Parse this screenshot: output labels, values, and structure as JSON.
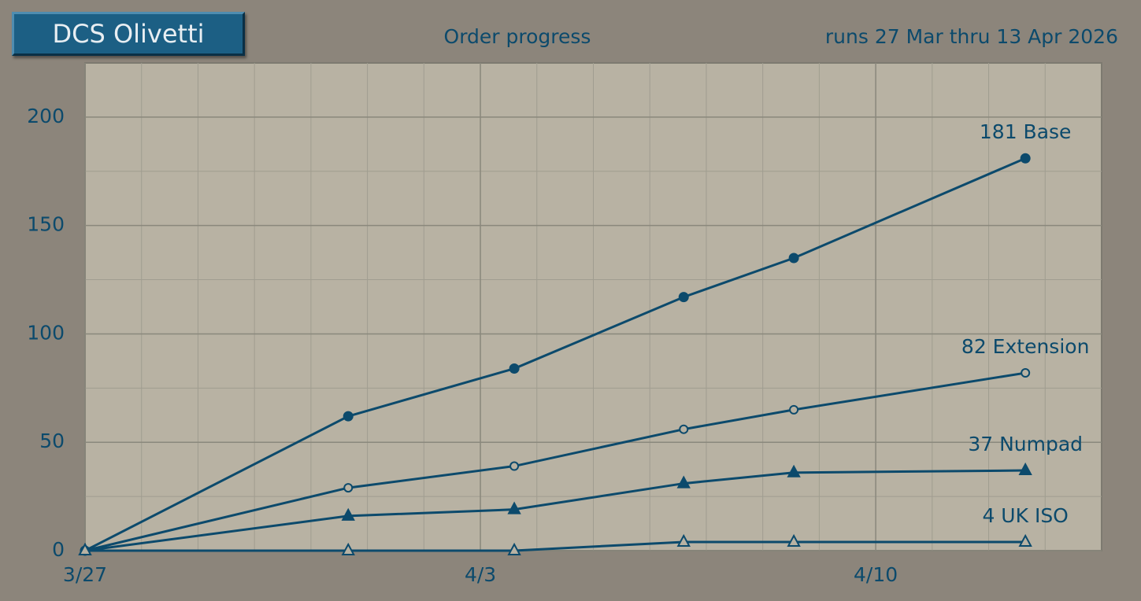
{
  "header": {
    "button": "DCS Olivetti"
  },
  "chart_data": {
    "type": "line",
    "title": "Order progress",
    "subtitle": "runs 27 Mar thru 13 Apr 2026",
    "x": [
      0,
      4.66,
      7.6,
      10.6,
      12.55,
      16.65
    ],
    "xlim": [
      0,
      18
    ],
    "xticks": [
      {
        "value": 0,
        "label": "3/27"
      },
      {
        "value": 7,
        "label": "4/3"
      },
      {
        "value": 14,
        "label": "4/10"
      }
    ],
    "ylim": [
      0,
      225
    ],
    "yticks": [
      0,
      50,
      100,
      150,
      200
    ],
    "minor_grid_step": {
      "x": 1,
      "y": 25
    },
    "grid": true,
    "color": "#0c4a6c",
    "series": [
      {
        "marker": "filled-circle",
        "values": [
          0,
          62,
          84,
          117,
          135,
          181
        ],
        "value_labels": [
          null,
          null,
          null,
          null,
          null,
          "181 Base"
        ]
      },
      {
        "marker": "open-circle",
        "values": [
          0,
          29,
          39,
          56,
          65,
          82
        ],
        "value_labels": [
          null,
          null,
          null,
          null,
          null,
          "82 Extension"
        ]
      },
      {
        "marker": "filled-triangle",
        "values": [
          0,
          16,
          19,
          31,
          36,
          37
        ],
        "value_labels": [
          null,
          null,
          null,
          null,
          null,
          "37 Numpad"
        ]
      },
      {
        "marker": "open-triangle",
        "values": [
          0,
          0,
          0,
          4,
          4,
          4
        ],
        "value_labels": [
          null,
          null,
          null,
          null,
          null,
          "4 UK ISO"
        ]
      }
    ]
  }
}
